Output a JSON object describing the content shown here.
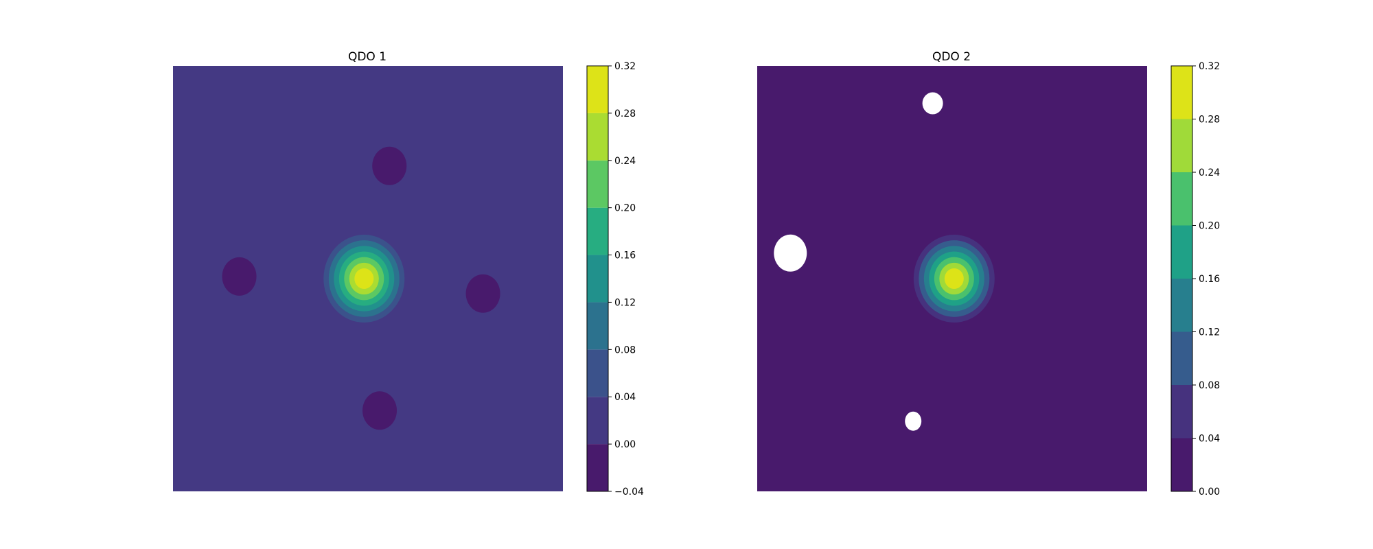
{
  "chart_data": [
    {
      "type": "heatmap",
      "title": "QDO 1",
      "axes": "off",
      "grid": false,
      "background_level": [
        0.0,
        0.04
      ],
      "peak": {
        "x": 0.49,
        "y": 0.5,
        "max_value": 0.32,
        "levels": [
          0.04,
          0.08,
          0.12,
          0.16,
          0.2,
          0.24,
          0.28,
          0.32
        ]
      },
      "dips": [
        {
          "x": 0.555,
          "y": 0.235,
          "level": [
            -0.04,
            0.0
          ]
        },
        {
          "x": 0.17,
          "y": 0.495,
          "level": [
            -0.04,
            0.0
          ]
        },
        {
          "x": 0.795,
          "y": 0.535,
          "level": [
            -0.04,
            0.0
          ]
        },
        {
          "x": 0.53,
          "y": 0.81,
          "level": [
            -0.04,
            0.0
          ]
        }
      ],
      "colorbar": {
        "boundaries": [
          -0.04,
          0.0,
          0.04,
          0.08,
          0.12,
          0.16,
          0.2,
          0.24,
          0.28,
          0.32
        ],
        "ticks": [
          "−0.04",
          "0.00",
          "0.04",
          "0.08",
          "0.12",
          "0.16",
          "0.20",
          "0.24",
          "0.28",
          "0.32"
        ],
        "colors": [
          "#481a6c",
          "#443983",
          "#3b528b",
          "#2c728e",
          "#21918c",
          "#27ad81",
          "#5cc863",
          "#aadc32",
          "#dde318"
        ]
      }
    },
    {
      "type": "heatmap",
      "title": "QDO 2",
      "axes": "off",
      "grid": false,
      "background_level": [
        0.0,
        0.04
      ],
      "peak": {
        "x": 0.505,
        "y": 0.5,
        "max_value": 0.32,
        "levels": [
          0.04,
          0.08,
          0.12,
          0.16,
          0.2,
          0.24,
          0.28,
          0.32
        ]
      },
      "unfilled_regions": [
        {
          "x": 0.45,
          "y": 0.088,
          "note": "below color range"
        },
        {
          "x": 0.085,
          "y": 0.44,
          "note": "below color range"
        },
        {
          "x": 0.4,
          "y": 0.835,
          "note": "below color range"
        }
      ],
      "colorbar": {
        "boundaries": [
          0.0,
          0.04,
          0.08,
          0.12,
          0.16,
          0.2,
          0.24,
          0.28,
          0.32
        ],
        "ticks": [
          "0.00",
          "0.04",
          "0.08",
          "0.12",
          "0.16",
          "0.20",
          "0.24",
          "0.28",
          "0.32"
        ],
        "colors": [
          "#481a6c",
          "#46327e",
          "#365c8d",
          "#277f8e",
          "#1fa187",
          "#4ac16d",
          "#a0da39",
          "#dde318"
        ]
      }
    }
  ]
}
